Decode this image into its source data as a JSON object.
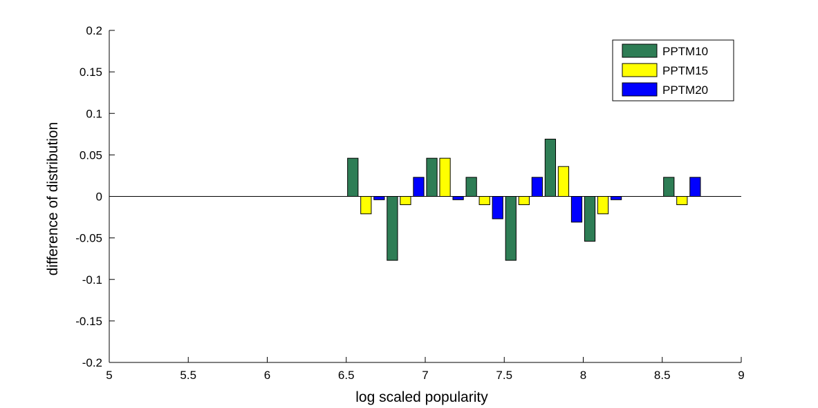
{
  "chart_data": {
    "type": "bar",
    "title": "",
    "xlabel": "log scaled popularity",
    "ylabel": "difference of distribution",
    "xlim": [
      5,
      9
    ],
    "ylim": [
      -0.2,
      0.2
    ],
    "x_ticks": [
      "5",
      "5.5",
      "6",
      "6.5",
      "7",
      "7.5",
      "8",
      "8.5",
      "9"
    ],
    "y_ticks": [
      "0.2",
      "0.15",
      "0.1",
      "0.05",
      "0",
      "-0.05",
      "-0.1",
      "-0.15",
      "-0.2"
    ],
    "x_tick_values": [
      5,
      5.5,
      6,
      6.5,
      7,
      7.5,
      8,
      8.5,
      9
    ],
    "y_tick_values": [
      0.2,
      0.15,
      0.1,
      0.05,
      0,
      -0.05,
      -0.1,
      -0.15,
      -0.2
    ],
    "grid": false,
    "legend_position": "top-right",
    "x": [
      6.625,
      6.875,
      7.125,
      7.375,
      7.625,
      7.875,
      8.125,
      8.625
    ],
    "series": [
      {
        "name": "PPTM10",
        "color": "#2e7d55",
        "values": [
          0.046,
          -0.077,
          0.046,
          0.023,
          -0.077,
          0.069,
          -0.054,
          0.023
        ]
      },
      {
        "name": "PPTM15",
        "color": "#ffff00",
        "values": [
          -0.021,
          -0.01,
          0.046,
          -0.01,
          -0.01,
          0.036,
          -0.021,
          -0.01
        ]
      },
      {
        "name": "PPTM20",
        "color": "#0000ff",
        "values": [
          -0.004,
          0.023,
          -0.004,
          -0.027,
          0.023,
          -0.031,
          -0.004,
          0.023
        ]
      }
    ]
  }
}
